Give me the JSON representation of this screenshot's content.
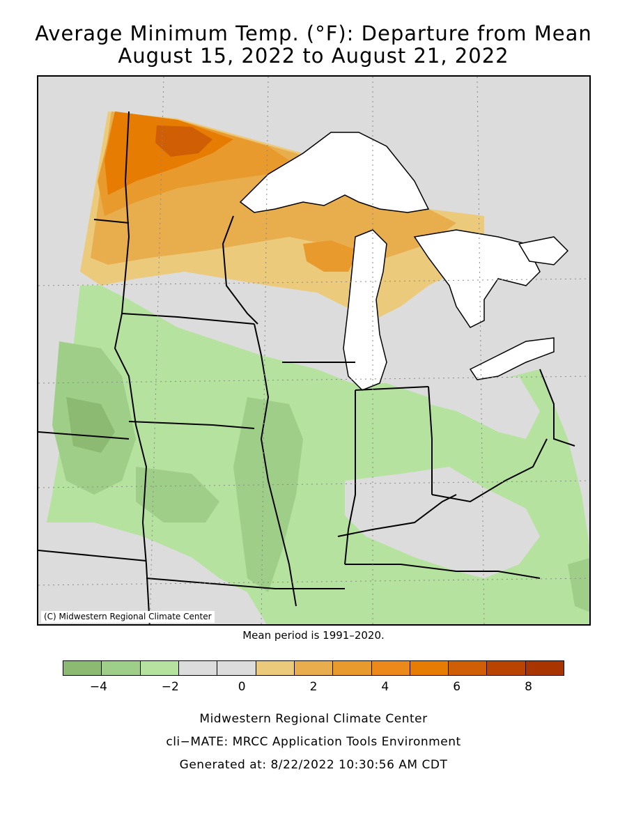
{
  "title_line1": "Average Minimum Temp. (°F): Departure from Mean",
  "title_line2": "August 15, 2022 to August 21, 2022",
  "map": {
    "credit": "(C) Midwestern Regional Climate Center",
    "colors": {
      "neg4": "#8cba72",
      "neg3": "#9fce88",
      "neg2": "#b5e29e",
      "zero": "#dcdcdc",
      "pos1": "#ebca7c",
      "pos2": "#e8ad4c",
      "pos3": "#e99a2c",
      "pos5": "#e67c02",
      "pos6": "#cf5e04",
      "lake": "#ffffff",
      "outline": "#000000"
    }
  },
  "mean_period": "Mean period is 1991–2020.",
  "legend": {
    "colors": [
      "#8cba72",
      "#9fce88",
      "#b5e29e",
      "#dcdcdc",
      "#dcdcdc",
      "#ebca7c",
      "#e8ad4c",
      "#e99a2c",
      "#eb8a1a",
      "#e67c02",
      "#cf5e04",
      "#b94401",
      "#a83400"
    ],
    "tick_labels": [
      "−4",
      "−2",
      "0",
      "2",
      "4",
      "6",
      "8"
    ],
    "tick_values": [
      -4,
      -2,
      0,
      2,
      4,
      6,
      8
    ],
    "range": [
      -5,
      9
    ]
  },
  "footer": {
    "org": "Midwestern Regional Climate Center",
    "tool": "cli−MATE: MRCC Application Tools Environment",
    "generated": "Generated at: 8/22/2022 10:30:56 AM CDT"
  }
}
